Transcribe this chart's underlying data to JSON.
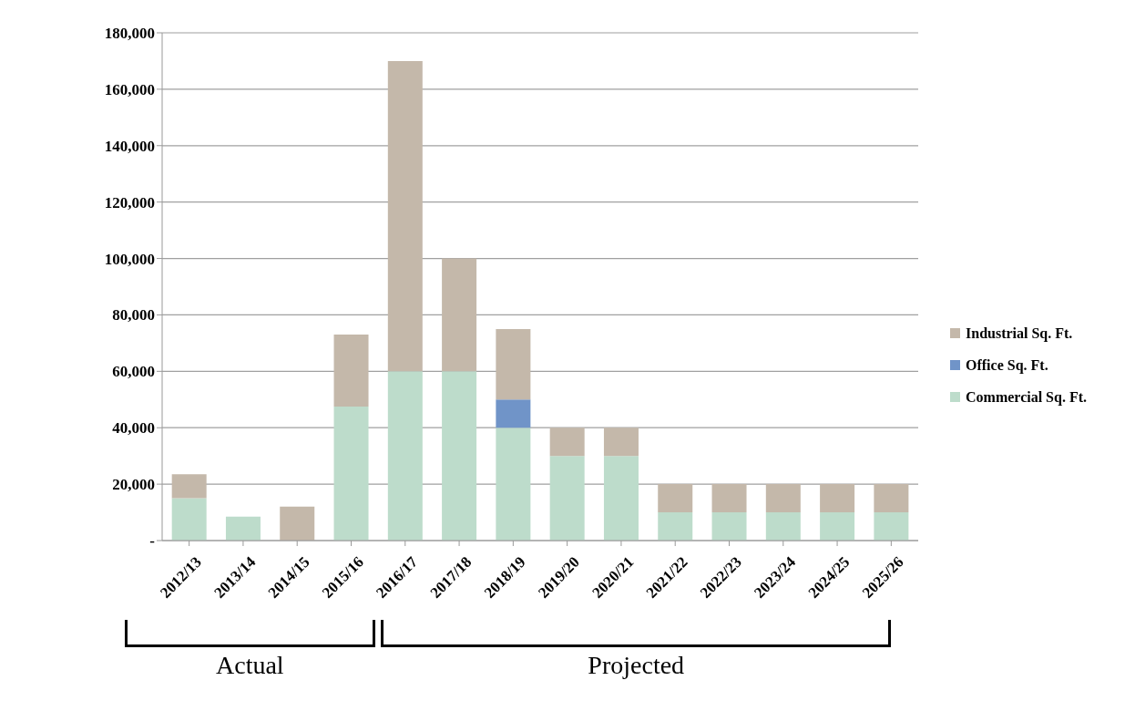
{
  "chart_data": {
    "type": "bar",
    "stacked": true,
    "categories": [
      "2012/13",
      "2013/14",
      "2014/15",
      "2015/16",
      "2016/17",
      "2017/18",
      "2018/19",
      "2019/20",
      "2020/21",
      "2021/22",
      "2022/23",
      "2023/24",
      "2024/25",
      "2025/26"
    ],
    "series": [
      {
        "name": "Commercial Sq. Ft.",
        "color": "#bddccb",
        "values": [
          15000,
          8500,
          0,
          47500,
          60000,
          60000,
          40000,
          30000,
          30000,
          10000,
          10000,
          10000,
          10000,
          10000
        ]
      },
      {
        "name": "Office Sq. Ft.",
        "color": "#7094c8",
        "values": [
          0,
          0,
          0,
          0,
          0,
          0,
          10000,
          0,
          0,
          0,
          0,
          0,
          0,
          0
        ]
      },
      {
        "name": "Industrial Sq. Ft.",
        "color": "#c4b8aa",
        "values": [
          8500,
          0,
          12000,
          25500,
          110000,
          40000,
          25000,
          10000,
          10000,
          10000,
          10000,
          10000,
          10000,
          10000
        ]
      }
    ],
    "ylim": [
      0,
      180000
    ],
    "yticks": [
      {
        "value": 0,
        "label": "-"
      },
      {
        "value": 20000,
        "label": "20,000"
      },
      {
        "value": 40000,
        "label": "40,000"
      },
      {
        "value": 60000,
        "label": "60,000"
      },
      {
        "value": 80000,
        "label": "80,000"
      },
      {
        "value": 100000,
        "label": "100,000"
      },
      {
        "value": 120000,
        "label": "120,000"
      },
      {
        "value": 140000,
        "label": "140,000"
      },
      {
        "value": 160000,
        "label": "160,000"
      },
      {
        "value": 180000,
        "label": "180,000"
      }
    ],
    "grid": "y",
    "legend": "right",
    "annotations": [
      "Actual",
      "Projected"
    ]
  }
}
